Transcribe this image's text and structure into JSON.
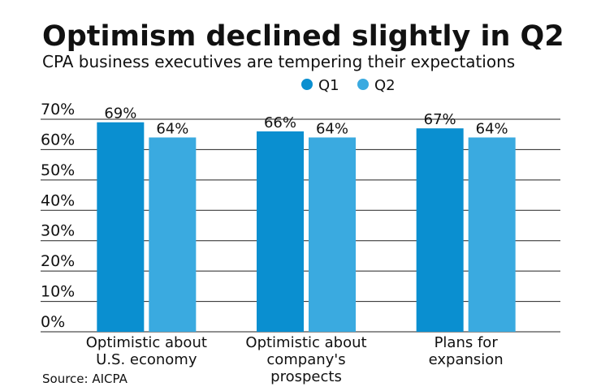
{
  "chart_data": {
    "type": "bar",
    "title": "Optimism declined slightly in Q2",
    "subtitle": "CPA business executives are tempering their expectations",
    "source": "Source: AICPA",
    "categories": [
      [
        "Optimistic about",
        "U.S. economy"
      ],
      [
        "Optimistic about",
        "company's",
        "prospects"
      ],
      [
        "Plans for",
        "expansion"
      ]
    ],
    "series": [
      {
        "name": "Q1",
        "color": "#0a8fd0",
        "values": [
          69,
          66,
          67
        ],
        "value_labels": [
          "69%",
          "66%",
          "67%"
        ]
      },
      {
        "name": "Q2",
        "color": "#3aaae0",
        "values": [
          64,
          64,
          64
        ],
        "value_labels": [
          "64%",
          "64%",
          "64%"
        ]
      }
    ],
    "ylim": [
      0,
      70
    ],
    "yticks": [
      {
        "value": 0,
        "label": "0%"
      },
      {
        "value": 10,
        "label": "10%"
      },
      {
        "value": 20,
        "label": "20%"
      },
      {
        "value": 30,
        "label": "30%"
      },
      {
        "value": 40,
        "label": "40%"
      },
      {
        "value": 50,
        "label": "50%"
      },
      {
        "value": 60,
        "label": "60%"
      },
      {
        "value": 70,
        "label": "70%"
      }
    ],
    "grid": true
  }
}
